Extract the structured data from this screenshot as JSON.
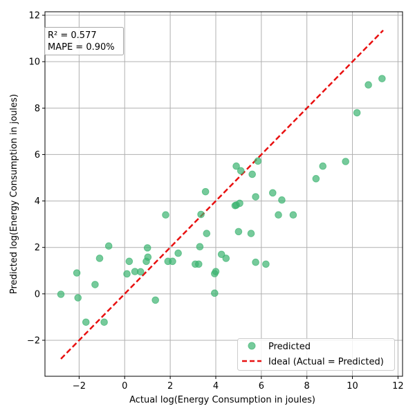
{
  "chart_data": {
    "type": "scatter",
    "xlabel": "Actual log(Energy Consumption in joules)",
    "ylabel": "Predicted log(Energy Consumption in joules)",
    "xlim": [
      -3.5,
      12.2
    ],
    "ylim": [
      -3.55,
      12.15
    ],
    "xticks": [
      -2,
      0,
      2,
      4,
      6,
      8,
      10,
      12
    ],
    "yticks": [
      -2,
      0,
      2,
      4,
      6,
      8,
      10,
      12
    ],
    "xtick_labels": [
      "−2",
      "0",
      "2",
      "4",
      "6",
      "8",
      "10",
      "12"
    ],
    "ytick_labels": [
      "−2",
      "0",
      "2",
      "4",
      "6",
      "8",
      "10",
      "12"
    ],
    "grid": true,
    "annotation": [
      "R² = 0.577",
      "MAPE = 0.90%"
    ],
    "legend_position": "lower right",
    "colors": {
      "points": "#3cb371",
      "ideal": "#e81010",
      "grid": "#b0b0b0"
    },
    "series": [
      {
        "name": "Predicted",
        "kind": "scatter",
        "points": [
          [
            -2.8,
            -0.02
          ],
          [
            -2.1,
            0.9
          ],
          [
            -2.05,
            -0.17
          ],
          [
            -1.7,
            -1.22
          ],
          [
            -1.3,
            0.4
          ],
          [
            -1.1,
            1.53
          ],
          [
            -0.9,
            -1.22
          ],
          [
            -0.7,
            2.06
          ],
          [
            0.1,
            0.86
          ],
          [
            0.2,
            1.4
          ],
          [
            0.45,
            0.96
          ],
          [
            0.7,
            0.95
          ],
          [
            0.95,
            1.4
          ],
          [
            1.0,
            1.98
          ],
          [
            1.02,
            1.58
          ],
          [
            1.35,
            -0.27
          ],
          [
            1.8,
            3.4
          ],
          [
            1.9,
            1.4
          ],
          [
            2.1,
            1.4
          ],
          [
            2.35,
            1.75
          ],
          [
            3.1,
            1.28
          ],
          [
            3.25,
            1.28
          ],
          [
            3.3,
            2.03
          ],
          [
            3.35,
            3.42
          ],
          [
            3.55,
            4.4
          ],
          [
            3.6,
            2.6
          ],
          [
            3.95,
            0.87
          ],
          [
            3.95,
            0.03
          ],
          [
            4.0,
            0.96
          ],
          [
            4.25,
            1.7
          ],
          [
            4.45,
            1.53
          ],
          [
            4.85,
            3.8
          ],
          [
            4.9,
            3.82
          ],
          [
            4.9,
            5.5
          ],
          [
            5.0,
            2.68
          ],
          [
            5.05,
            3.9
          ],
          [
            5.1,
            5.3
          ],
          [
            5.55,
            2.6
          ],
          [
            5.6,
            5.15
          ],
          [
            5.75,
            1.36
          ],
          [
            5.75,
            4.18
          ],
          [
            5.85,
            5.72
          ],
          [
            6.2,
            1.28
          ],
          [
            6.5,
            4.35
          ],
          [
            6.75,
            3.4
          ],
          [
            6.9,
            4.04
          ],
          [
            7.4,
            3.4
          ],
          [
            8.4,
            4.96
          ],
          [
            8.7,
            5.5
          ],
          [
            9.7,
            5.7
          ],
          [
            10.2,
            7.8
          ],
          [
            10.7,
            9.0
          ],
          [
            11.3,
            9.27
          ]
        ]
      },
      {
        "name": "Ideal (Actual = Predicted)",
        "kind": "line",
        "style": "dashed",
        "points": [
          [
            -2.8,
            -2.8
          ],
          [
            11.35,
            11.35
          ]
        ]
      }
    ]
  }
}
